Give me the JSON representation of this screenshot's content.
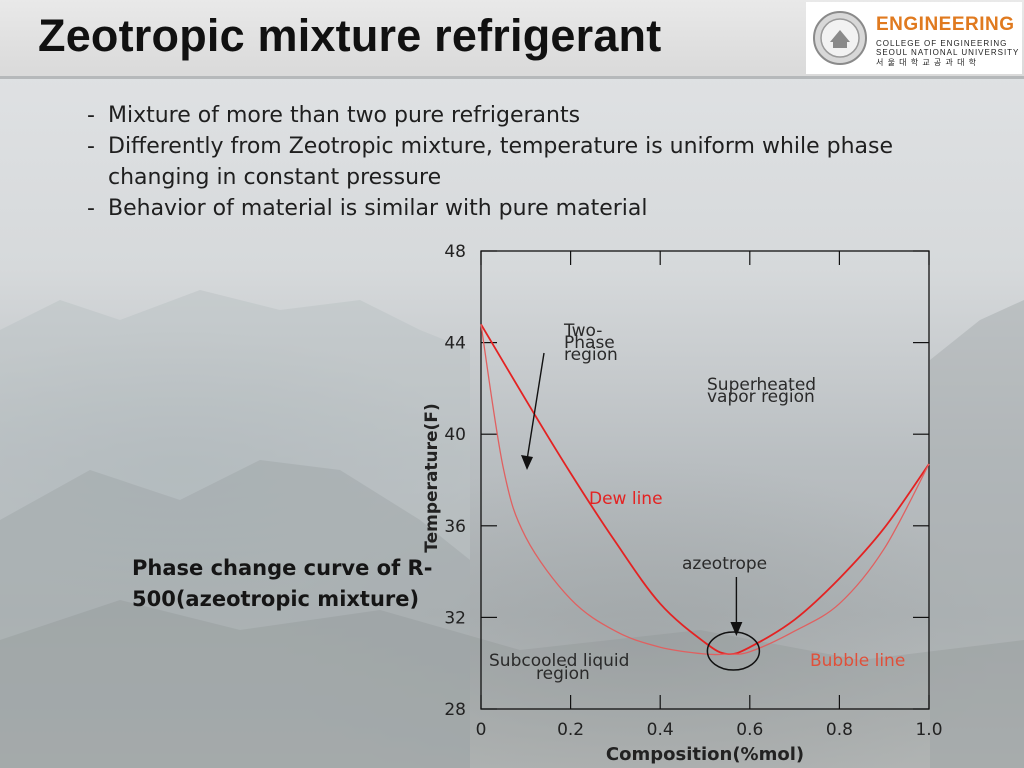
{
  "slide": {
    "title": "Zeotropic mixture refrigerant",
    "bullets": [
      {
        "dash": "-",
        "text": "Mixture of more than two pure refrigerants"
      },
      {
        "dash": "-",
        "text": "Differently from Zeotropic mixture, temperature is uniform while phase changing in constant pressure"
      },
      {
        "dash": "-",
        "text": "Behavior of material is similar with pure material"
      }
    ],
    "caption": "Phase change curve of R-500(azeotropic mixture)"
  },
  "logo": {
    "word": "ENGINEERING",
    "line1": "COLLEGE OF ENGINEERING",
    "line2": "SEOUL NATIONAL UNIVERSITY",
    "line3": "서 울 대 학 교 공 과 대 학"
  },
  "chart_data": {
    "type": "line",
    "xlabel": "Composition(%mol)",
    "ylabel": "Temperature(F)",
    "xlim": [
      0,
      1.0
    ],
    "ylim": [
      28,
      48
    ],
    "xticks": [
      "0",
      "0.2",
      "0.4",
      "0.6",
      "0.8",
      "1.0"
    ],
    "yticks": [
      "28",
      "32",
      "36",
      "40",
      "44",
      "48"
    ],
    "series": [
      {
        "name": "Dew line",
        "color": "#e42222",
        "x": [
          0,
          0.1,
          0.2,
          0.3,
          0.4,
          0.5,
          0.55,
          0.6,
          0.7,
          0.8,
          0.9,
          1.0
        ],
        "y": [
          44.8,
          41.5,
          38.3,
          35.3,
          32.6,
          30.9,
          30.4,
          30.7,
          31.9,
          33.7,
          35.9,
          38.7
        ]
      },
      {
        "name": "Bubble line",
        "color": "#e06060",
        "x": [
          0,
          0.05,
          0.1,
          0.2,
          0.3,
          0.4,
          0.5,
          0.55,
          0.6,
          0.7,
          0.8,
          0.9,
          1.0
        ],
        "y": [
          44.8,
          38.5,
          35.5,
          32.8,
          31.4,
          30.7,
          30.4,
          30.4,
          30.5,
          31.4,
          32.6,
          35.0,
          38.7
        ]
      }
    ],
    "annotations": [
      {
        "text": "Two-",
        "color": "#2a2a2a"
      },
      {
        "text": "Phase",
        "color": "#2a2a2a"
      },
      {
        "text": "region",
        "color": "#2a2a2a"
      },
      {
        "text": "Superheated",
        "color": "#2a2a2a"
      },
      {
        "text": "vapor region",
        "color": "#2a2a2a"
      },
      {
        "text": "Dew line",
        "color": "#e42222"
      },
      {
        "text": "azeotrope",
        "color": "#2a2a2a"
      },
      {
        "text": "Subcooled liquid",
        "color": "#2a2a2a"
      },
      {
        "text": "region",
        "color": "#2a2a2a"
      },
      {
        "text": "Bubble line",
        "color": "#e0503a"
      }
    ],
    "azeotrope": {
      "x": 0.55,
      "y": 30.4
    },
    "grid": false
  }
}
